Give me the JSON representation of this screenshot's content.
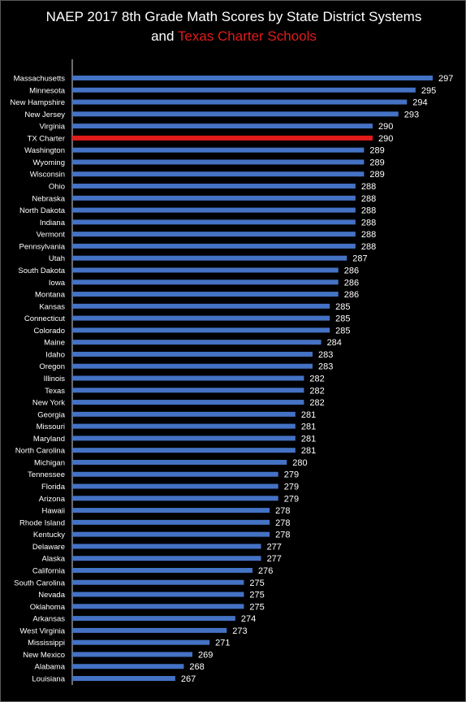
{
  "chart_data": {
    "type": "bar",
    "orientation": "horizontal",
    "title_line1": "NAEP 2017 8th Grade Math Scores by State District Systems",
    "title_line2_prefix": "and",
    "title_line2_highlight": "Texas Charter Schools",
    "highlight_category": "TX Charter",
    "colors": {
      "bar": "#4472c4",
      "highlight": "#e11b1b",
      "text": "#ffffff",
      "background": "#000000"
    },
    "xlim": [
      255,
      300
    ],
    "categories": [
      "Massachusetts",
      "Minnesota",
      "New Hampshire",
      "New Jersey",
      "Virginia",
      "TX Charter",
      "Washington",
      "Wyoming",
      "Wisconsin",
      "Ohio",
      "Nebraska",
      "North Dakota",
      "Indiana",
      "Vermont",
      "Pennsylvania",
      "Utah",
      "South Dakota",
      "Iowa",
      "Montana",
      "Kansas",
      "Connecticut",
      "Colorado",
      "Maine",
      "Idaho",
      "Oregon",
      "Illinois",
      "Texas",
      "New York",
      "Georgia",
      "Missouri",
      "Maryland",
      "North Carolina",
      "Michigan",
      "Tennessee",
      "Florida",
      "Arizona",
      "Hawaii",
      "Rhode Island",
      "Kentucky",
      "Delaware",
      "Alaska",
      "California",
      "South Carolina",
      "Nevada",
      "Oklahoma",
      "Arkansas",
      "West Virginia",
      "Mississippi",
      "New Mexico",
      "Alabama",
      "Louisiana"
    ],
    "values": [
      297,
      295,
      294,
      293,
      290,
      290,
      289,
      289,
      289,
      288,
      288,
      288,
      288,
      288,
      288,
      287,
      286,
      286,
      286,
      285,
      285,
      285,
      284,
      283,
      283,
      282,
      282,
      282,
      281,
      281,
      281,
      281,
      280,
      279,
      279,
      279,
      278,
      278,
      278,
      277,
      277,
      276,
      275,
      275,
      275,
      274,
      273,
      271,
      269,
      268,
      267
    ],
    "value_labels": [
      "297",
      "295",
      "294",
      "293",
      "290",
      "290",
      "289",
      "289",
      "289",
      "288",
      "288",
      "288",
      "288",
      "288",
      "288",
      "287",
      "286",
      "286",
      "286",
      "285",
      "285",
      "285",
      "284",
      "283",
      "283",
      "282",
      "282",
      "282",
      "281",
      "281",
      "281",
      "281",
      "280",
      "279",
      "279",
      "279",
      "278",
      "278",
      "278",
      "277",
      "277",
      "276",
      "275",
      "275",
      "275",
      "274",
      "273",
      "271",
      "269",
      "268",
      "267"
    ]
  }
}
